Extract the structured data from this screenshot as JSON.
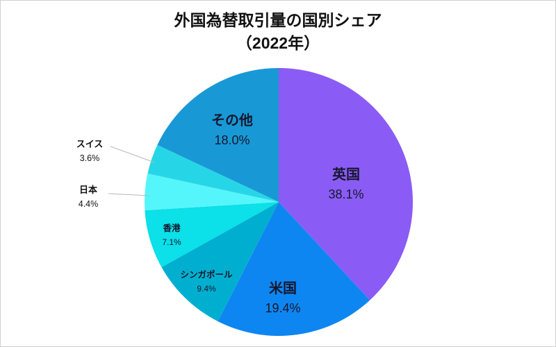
{
  "title": {
    "line1": "外国為替取引量の国別シェア",
    "line2": "（2022年）"
  },
  "chart_data": {
    "type": "pie",
    "title": "外国為替取引量の国別シェア（2022年）",
    "categories": [
      "英国",
      "米国",
      "シンガポール",
      "香港",
      "日本",
      "スイス",
      "その他"
    ],
    "values": [
      38.1,
      19.4,
      9.4,
      7.1,
      4.4,
      3.6,
      18.0
    ],
    "unit": "%",
    "colors": [
      "#8A5CF5",
      "#0E86F1",
      "#00AFD0",
      "#0CE0E8",
      "#55F5FC",
      "#27D6E6",
      "#1899D6"
    ],
    "start_angle_deg": 0,
    "direction": "clockwise",
    "legend_position": "none",
    "label_style": "inside-and-outside"
  },
  "slices": [
    {
      "label": "英国",
      "pct": "38.1%"
    },
    {
      "label": "米国",
      "pct": "19.4%"
    },
    {
      "label": "シンガポール",
      "pct": "9.4%"
    },
    {
      "label": "香港",
      "pct": "7.1%"
    },
    {
      "label": "日本",
      "pct": "4.4%"
    },
    {
      "label": "スイス",
      "pct": "3.6%"
    },
    {
      "label": "その他",
      "pct": "18.0%"
    }
  ]
}
